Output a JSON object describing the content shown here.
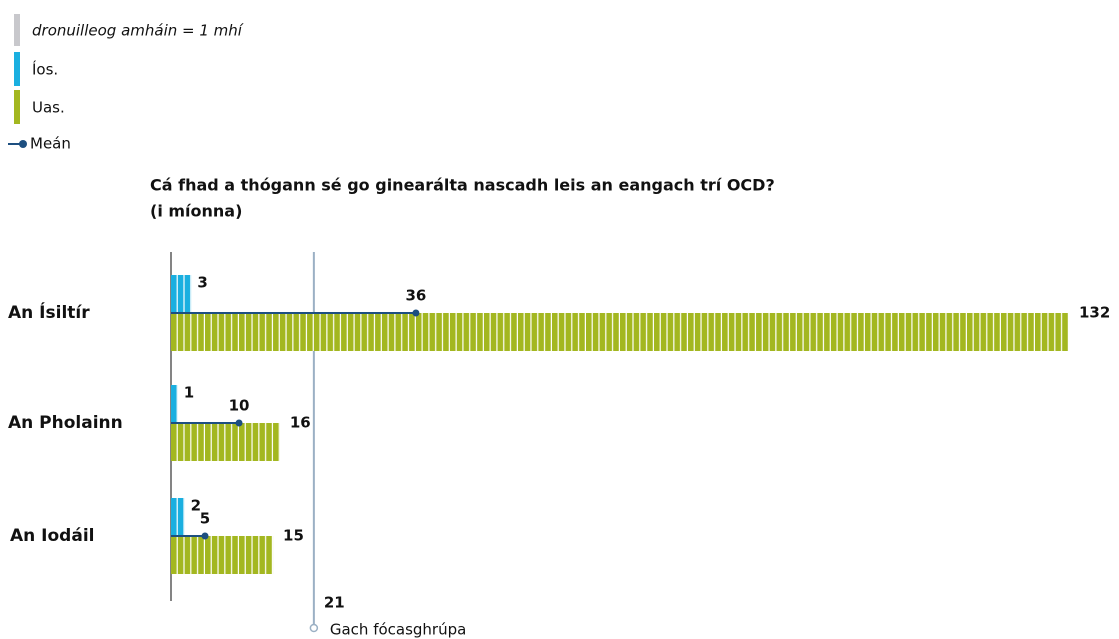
{
  "legend_note": "dronuilleog amháin = 1 mhí",
  "chart_data": {
    "type": "bar",
    "title": "Cá fhad a thógann sé go ginearálta nascadh leis an eangach trí OCD?",
    "subtitle": "(i míonna)",
    "categories": [
      "An Ísiltír",
      "An Pholainn",
      "An Iodáil"
    ],
    "series": [
      {
        "name": "Íos.",
        "color": "#1aafe0",
        "values": [
          3,
          1,
          2
        ]
      },
      {
        "name": "Uas.",
        "color": "#a3b720",
        "values": [
          132,
          16,
          15
        ]
      },
      {
        "name": "Meán",
        "color": "#1d4f80",
        "values": [
          36,
          10,
          5
        ]
      }
    ],
    "reference": {
      "value": 21,
      "label": "Gach fócasghrúpa"
    },
    "xlim": [
      0,
      132
    ]
  }
}
